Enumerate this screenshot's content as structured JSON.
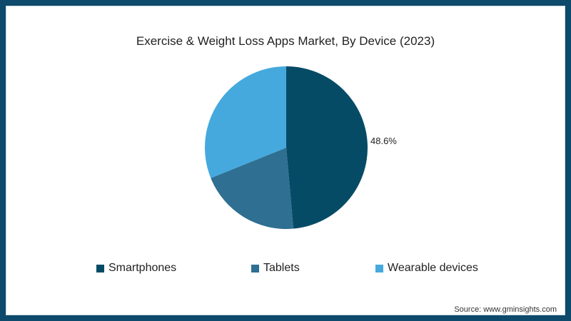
{
  "chart_data": {
    "type": "pie",
    "title": "Exercise & Weight Loss Apps Market, By Device (2023)",
    "categories": [
      "Smartphones",
      "Tablets",
      "Wearable devices"
    ],
    "values": [
      48.6,
      20.3,
      31.1
    ],
    "colors": [
      "#064b66",
      "#2e6f92",
      "#45a9de"
    ],
    "data_labels": [
      {
        "category": "Smartphones",
        "text": "48.6%"
      }
    ],
    "start_angle": "12 o'clock",
    "direction": "clockwise",
    "legend_position": "bottom"
  },
  "chart": {
    "title": "Exercise & Weight Loss Apps Market, By Device (2023)",
    "label_smartphones": "48.6%",
    "legend": [
      {
        "label": "Smartphones",
        "color": "#064b66"
      },
      {
        "label": "Tablets",
        "color": "#2e6f92"
      },
      {
        "label": "Wearable devices",
        "color": "#45a9de"
      }
    ],
    "source": "Source: www.gminsights.com"
  }
}
